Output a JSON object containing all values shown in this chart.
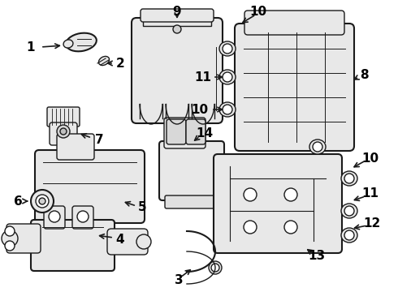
{
  "bg_color": "#f0f0f0",
  "line_color": "#1a1a1a",
  "label_color": "#000000",
  "font_size": 10,
  "font_size_large": 12,
  "lw": 1.0,
  "lw_thick": 1.5
}
